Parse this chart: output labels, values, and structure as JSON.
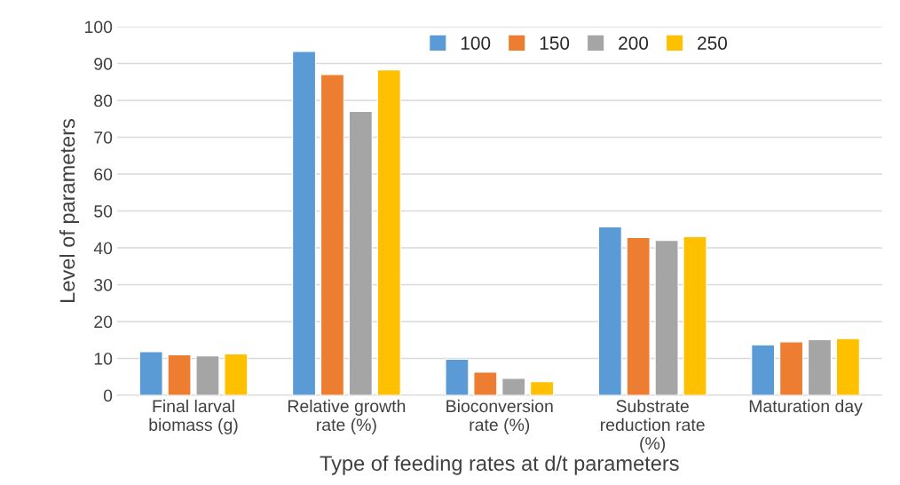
{
  "chart_data": {
    "type": "bar",
    "categories": [
      "Final larval\nbiomass (g)",
      "Relative growth\nrate (%)",
      "Bioconversion\nrate (%)",
      "Substrate\nreduction rate\n(%)",
      "Maturation day"
    ],
    "series": [
      {
        "name": "100",
        "color": "#5b9bd5",
        "values": [
          11.8,
          93.3,
          9.8,
          45.7,
          13.7
        ]
      },
      {
        "name": "150",
        "color": "#ed7d31",
        "values": [
          11.0,
          87.0,
          6.3,
          42.8,
          14.5
        ]
      },
      {
        "name": "200",
        "color": "#a5a5a5",
        "values": [
          10.7,
          77.0,
          4.6,
          42.0,
          15.1
        ]
      },
      {
        "name": "250",
        "color": "#ffc000",
        "values": [
          11.2,
          88.3,
          3.7,
          43.0,
          15.4
        ]
      }
    ],
    "xlabel": "Type of feeding rates at d/t parameters",
    "ylabel": "Level of parameters",
    "ylim": [
      0,
      100
    ],
    "yticks": [
      0,
      10,
      20,
      30,
      40,
      50,
      60,
      70,
      80,
      90,
      100
    ],
    "grid": "y",
    "legend": "top right"
  }
}
